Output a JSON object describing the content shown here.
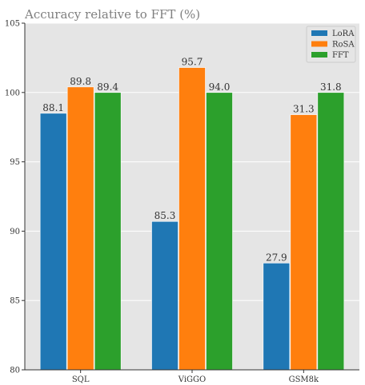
{
  "chart_data": {
    "type": "bar",
    "title": "Accuracy relative to FFT (%)",
    "xlabel": "",
    "ylabel": "",
    "categories": [
      "SQL",
      "ViGGO",
      "GSM8k"
    ],
    "ylim": [
      80,
      105
    ],
    "yticks": [
      "80",
      "85",
      "90",
      "95",
      "100",
      "105"
    ],
    "grid": true,
    "legend_position": "top-right",
    "series": [
      {
        "name": "LoRA",
        "color": "#1f77b4",
        "values": [
          98.5,
          90.7,
          87.7
        ],
        "labels": [
          "88.1",
          "85.3",
          "27.9"
        ]
      },
      {
        "name": "RoSA",
        "color": "#ff7f0e",
        "values": [
          100.4,
          101.8,
          98.4
        ],
        "labels": [
          "89.8",
          "95.7",
          "31.3"
        ]
      },
      {
        "name": "FFT",
        "color": "#2ca02c",
        "values": [
          100.0,
          100.0,
          100.0
        ],
        "labels": [
          "89.4",
          "94.0",
          "31.8"
        ]
      }
    ]
  }
}
